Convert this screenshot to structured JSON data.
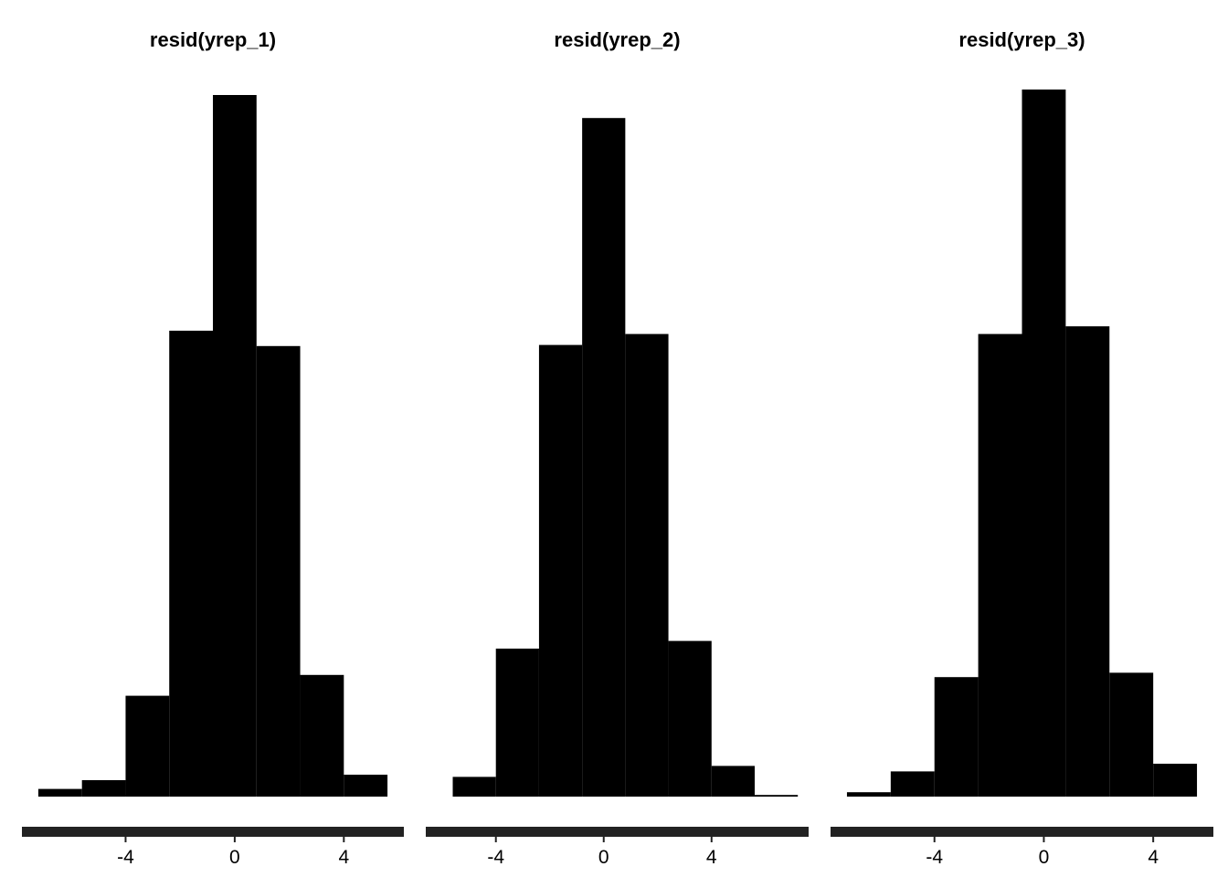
{
  "chart_data": [
    {
      "type": "bar",
      "title": "resid(yrep_1)",
      "bin_width": 1.6,
      "bins": [
        {
          "x0": -7.2,
          "x1": -5.6,
          "count": 0.7
        },
        {
          "x0": -5.6,
          "x1": -4.0,
          "count": 1.5
        },
        {
          "x0": -4.0,
          "x1": -2.4,
          "count": 9.2
        },
        {
          "x0": -2.4,
          "x1": -0.8,
          "count": 42.5
        },
        {
          "x0": -0.8,
          "x1": 0.8,
          "count": 64.0
        },
        {
          "x0": 0.8,
          "x1": 2.4,
          "count": 41.1
        },
        {
          "x0": 2.4,
          "x1": 4.0,
          "count": 11.1
        },
        {
          "x0": 4.0,
          "x1": 5.6,
          "count": 2.0
        }
      ],
      "xlim": [
        -7.8,
        6.2
      ],
      "xticks": [
        -4,
        0,
        4
      ],
      "xtick_labels": [
        "-4",
        "0",
        "4"
      ],
      "ylim": [
        0,
        64
      ]
    },
    {
      "type": "bar",
      "title": "resid(yrep_2)",
      "bin_width": 1.6,
      "bins": [
        {
          "x0": -5.6,
          "x1": -4.0,
          "count": 1.8
        },
        {
          "x0": -4.0,
          "x1": -2.4,
          "count": 13.5
        },
        {
          "x0": -2.4,
          "x1": -0.8,
          "count": 41.2
        },
        {
          "x0": -0.8,
          "x1": 0.8,
          "count": 61.9
        },
        {
          "x0": 0.8,
          "x1": 2.4,
          "count": 42.2
        },
        {
          "x0": 2.4,
          "x1": 4.0,
          "count": 14.2
        },
        {
          "x0": 4.0,
          "x1": 5.6,
          "count": 2.8
        },
        {
          "x0": 5.6,
          "x1": 7.2,
          "count": 0.15
        }
      ],
      "xlim": [
        -6.6,
        7.6
      ],
      "xticks": [
        -4,
        0,
        4
      ],
      "xtick_labels": [
        "-4",
        "0",
        "4"
      ],
      "ylim": [
        0,
        64
      ]
    },
    {
      "type": "bar",
      "title": "resid(yrep_3)",
      "bin_width": 1.6,
      "bins": [
        {
          "x0": -7.2,
          "x1": -5.6,
          "count": 0.4
        },
        {
          "x0": -5.6,
          "x1": -4.0,
          "count": 2.3
        },
        {
          "x0": -4.0,
          "x1": -2.4,
          "count": 10.9
        },
        {
          "x0": -2.4,
          "x1": -0.8,
          "count": 42.2
        },
        {
          "x0": -0.8,
          "x1": 0.8,
          "count": 64.5
        },
        {
          "x0": 0.8,
          "x1": 2.4,
          "count": 42.9
        },
        {
          "x0": 2.4,
          "x1": 4.0,
          "count": 11.3
        },
        {
          "x0": 4.0,
          "x1": 5.6,
          "count": 3.0
        }
      ],
      "xlim": [
        -7.8,
        6.2
      ],
      "xticks": [
        -4,
        0,
        4
      ],
      "xtick_labels": [
        "-4",
        "0",
        "4"
      ],
      "ylim": [
        0,
        64
      ]
    }
  ],
  "colors": {
    "bar_fill": "#000000",
    "axis_line": "#222222",
    "text": "#000000",
    "background": "#ffffff"
  }
}
